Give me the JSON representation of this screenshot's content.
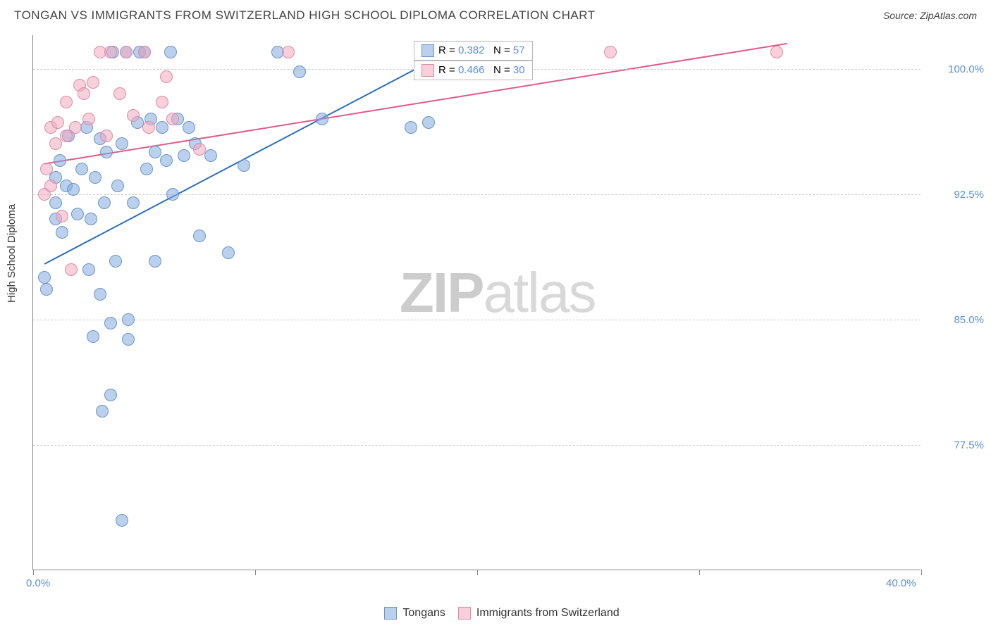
{
  "title": "TONGAN VS IMMIGRANTS FROM SWITZERLAND HIGH SCHOOL DIPLOMA CORRELATION CHART",
  "source": "Source: ZipAtlas.com",
  "ylabel": "High School Diploma",
  "watermark_bold": "ZIP",
  "watermark_light": "atlas",
  "chart": {
    "type": "scatter",
    "xlim": [
      0,
      40
    ],
    "ylim": [
      70,
      102
    ],
    "yticks": [
      77.5,
      85.0,
      92.5,
      100.0
    ],
    "ytick_labels": [
      "77.5%",
      "85.0%",
      "92.5%",
      "100.0%"
    ],
    "xtick_marks": [
      0,
      10,
      20,
      30,
      40
    ],
    "xtick_labels": [
      {
        "x": 0,
        "t": "0.0%"
      },
      {
        "x": 40,
        "t": "40.0%"
      }
    ],
    "series": [
      {
        "name": "Tongans",
        "color_fill": "rgba(130,170,220,0.55)",
        "color_stroke": "#6a96cc",
        "line_color": "#2a6fbf",
        "R": "0.382",
        "N": "57",
        "trend": {
          "x1": 0.5,
          "y1": 88.3,
          "x2": 18.0,
          "y2": 100.5
        },
        "points": [
          [
            0.5,
            87.5
          ],
          [
            0.6,
            86.8
          ],
          [
            1.0,
            92.0
          ],
          [
            1.0,
            91.0
          ],
          [
            1.0,
            93.5
          ],
          [
            1.2,
            94.5
          ],
          [
            1.3,
            90.2
          ],
          [
            1.5,
            93.0
          ],
          [
            1.6,
            96.0
          ],
          [
            1.8,
            92.8
          ],
          [
            2.0,
            91.3
          ],
          [
            2.2,
            94.0
          ],
          [
            2.4,
            96.5
          ],
          [
            2.5,
            88.0
          ],
          [
            2.6,
            91.0
          ],
          [
            2.7,
            84.0
          ],
          [
            2.8,
            93.5
          ],
          [
            3.0,
            95.8
          ],
          [
            3.0,
            86.5
          ],
          [
            3.1,
            79.5
          ],
          [
            3.2,
            92.0
          ],
          [
            3.3,
            95.0
          ],
          [
            3.5,
            80.5
          ],
          [
            3.5,
            84.8
          ],
          [
            3.6,
            101.0
          ],
          [
            3.7,
            88.5
          ],
          [
            3.8,
            93.0
          ],
          [
            4.0,
            95.5
          ],
          [
            4.0,
            73.0
          ],
          [
            4.2,
            101.0
          ],
          [
            4.3,
            85.0
          ],
          [
            4.3,
            83.8
          ],
          [
            4.5,
            92.0
          ],
          [
            4.7,
            96.8
          ],
          [
            4.8,
            101.0
          ],
          [
            5.0,
            101.0
          ],
          [
            5.1,
            94.0
          ],
          [
            5.3,
            97.0
          ],
          [
            5.5,
            95.0
          ],
          [
            5.5,
            88.5
          ],
          [
            5.8,
            96.5
          ],
          [
            6.0,
            94.5
          ],
          [
            6.2,
            101.0
          ],
          [
            6.3,
            92.5
          ],
          [
            6.5,
            97.0
          ],
          [
            6.8,
            94.8
          ],
          [
            7.0,
            96.5
          ],
          [
            7.3,
            95.5
          ],
          [
            7.5,
            90.0
          ],
          [
            8.0,
            94.8
          ],
          [
            8.8,
            89.0
          ],
          [
            9.5,
            94.2
          ],
          [
            11.0,
            101.0
          ],
          [
            12.0,
            99.8
          ],
          [
            13.0,
            97.0
          ],
          [
            17.0,
            96.5
          ],
          [
            17.8,
            96.8
          ]
        ]
      },
      {
        "name": "Immigrants from Switzerland",
        "color_fill": "rgba(240,170,190,0.55)",
        "color_stroke": "#e08aa8",
        "line_color": "#e15a85",
        "R": "0.466",
        "N": "30",
        "trend": {
          "x1": 0.5,
          "y1": 94.3,
          "x2": 34.0,
          "y2": 101.5
        },
        "points": [
          [
            0.5,
            92.5
          ],
          [
            0.6,
            94.0
          ],
          [
            0.8,
            93.0
          ],
          [
            0.8,
            96.5
          ],
          [
            1.0,
            95.5
          ],
          [
            1.1,
            96.8
          ],
          [
            1.3,
            91.2
          ],
          [
            1.5,
            98.0
          ],
          [
            1.5,
            96.0
          ],
          [
            1.7,
            88.0
          ],
          [
            1.9,
            96.5
          ],
          [
            2.1,
            99.0
          ],
          [
            2.3,
            98.5
          ],
          [
            2.5,
            97.0
          ],
          [
            2.7,
            99.2
          ],
          [
            3.0,
            101.0
          ],
          [
            3.3,
            96.0
          ],
          [
            3.5,
            101.0
          ],
          [
            3.9,
            98.5
          ],
          [
            4.2,
            101.0
          ],
          [
            4.5,
            97.2
          ],
          [
            5.0,
            101.0
          ],
          [
            5.2,
            96.5
          ],
          [
            5.8,
            98.0
          ],
          [
            6.0,
            99.5
          ],
          [
            6.3,
            97.0
          ],
          [
            7.5,
            95.2
          ],
          [
            11.5,
            101.0
          ],
          [
            26.0,
            101.0
          ],
          [
            33.5,
            101.0
          ]
        ]
      }
    ],
    "legend_bottom": [
      {
        "swatch": "blue",
        "label": "Tongans"
      },
      {
        "swatch": "pink",
        "label": "Immigrants from Switzerland"
      }
    ]
  }
}
